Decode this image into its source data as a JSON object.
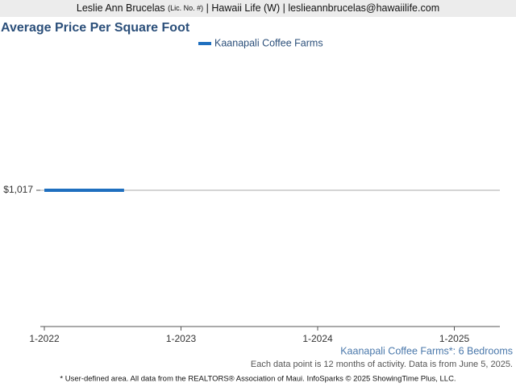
{
  "header": {
    "name": "Leslie Ann Brucelas",
    "license": "(Lic. No. #)",
    "rest": "| Hawaii Life (W) | leslieannbrucelas@hawaiilife.com"
  },
  "chart_data": {
    "type": "line",
    "title": "Average Price Per Square Foot",
    "subtitle": "Kaanapali Coffee Farms*: 6 Bedrooms",
    "note": "Each data point is 12 months of activity. Data is from June 5, 2025.",
    "x": [
      "1-2022",
      "2-2022",
      "3-2022",
      "4-2022",
      "5-2022",
      "6-2022",
      "7-2022",
      "8-2022"
    ],
    "series": [
      {
        "name": "Kaanapali Coffee Farms",
        "color": "#1f6fbf",
        "values": [
          1017,
          1017,
          1017,
          1017,
          1017,
          1017,
          1017,
          1017
        ]
      }
    ],
    "xlim": [
      "1-2022",
      "5-2025"
    ],
    "xticks": [
      "1-2022",
      "1-2023",
      "1-2024",
      "1-2025"
    ],
    "ylim": [
      0,
      2034
    ],
    "yticks": [
      {
        "value": 1017,
        "label": "$1,017"
      }
    ],
    "grid": true,
    "legend": "top"
  },
  "footer": "* User-defined area. All data from the REALTORS® Association of Maui. InfoSparks © 2025 ShowingTime Plus, LLC."
}
